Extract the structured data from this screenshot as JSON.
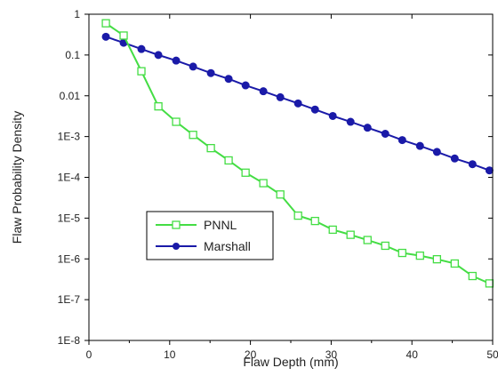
{
  "chart_data": {
    "type": "line",
    "xlabel": "Flaw Depth (mm)",
    "ylabel": "Flaw Probability Density",
    "xlim": [
      0,
      50
    ],
    "ylim": [
      1e-08,
      1
    ],
    "y_scale": "log",
    "x_ticks": [
      0,
      10,
      20,
      30,
      40,
      50
    ],
    "x_tick_labels": [
      "0",
      "10",
      "20",
      "30",
      "40",
      "50"
    ],
    "y_ticks": [
      1,
      0.1,
      0.01,
      0.001,
      0.0001,
      1e-05,
      1e-06,
      1e-07,
      1e-08
    ],
    "y_tick_labels": [
      "1",
      "0.1",
      "0.01",
      "1E-3",
      "1E-4",
      "1E-5",
      "1E-6",
      "1E-7",
      "1E-8"
    ],
    "grid": false,
    "legend_position": "center-left",
    "series": [
      {
        "name": "PNNL",
        "color": "#44dd44",
        "marker": "open-square",
        "x": [
          2.1,
          4.3,
          6.5,
          8.6,
          10.8,
          12.9,
          15.1,
          17.3,
          19.4,
          21.6,
          23.7,
          25.9,
          28.0,
          30.2,
          32.4,
          34.5,
          36.7,
          38.8,
          41.0,
          43.1,
          45.3,
          47.5,
          49.6
        ],
        "values": [
          0.6,
          0.3,
          0.04,
          0.0055,
          0.0023,
          0.0011,
          0.00052,
          0.00026,
          0.00013,
          7.2e-05,
          3.8e-05,
          1.15e-05,
          8.5e-06,
          5.2e-06,
          3.9e-06,
          2.9e-06,
          2.1e-06,
          1.4e-06,
          1.2e-06,
          9.8e-07,
          7.7e-07,
          3.8e-07,
          2.5e-07
        ]
      },
      {
        "name": "Marshall",
        "color": "#1a1aa8",
        "marker": "filled-circle",
        "x": [
          2.1,
          4.3,
          6.5,
          8.6,
          10.8,
          12.9,
          15.1,
          17.3,
          19.4,
          21.6,
          23.7,
          25.9,
          28.0,
          30.2,
          32.4,
          34.5,
          36.7,
          38.8,
          41.0,
          43.1,
          45.3,
          47.5,
          49.6
        ],
        "values": [
          0.28,
          0.2,
          0.14,
          0.1,
          0.073,
          0.052,
          0.036,
          0.026,
          0.018,
          0.0129,
          0.0092,
          0.0065,
          0.0046,
          0.0032,
          0.0023,
          0.00165,
          0.00117,
          0.00082,
          0.00059,
          0.00042,
          0.00029,
          0.00021,
          0.000148
        ]
      }
    ]
  }
}
